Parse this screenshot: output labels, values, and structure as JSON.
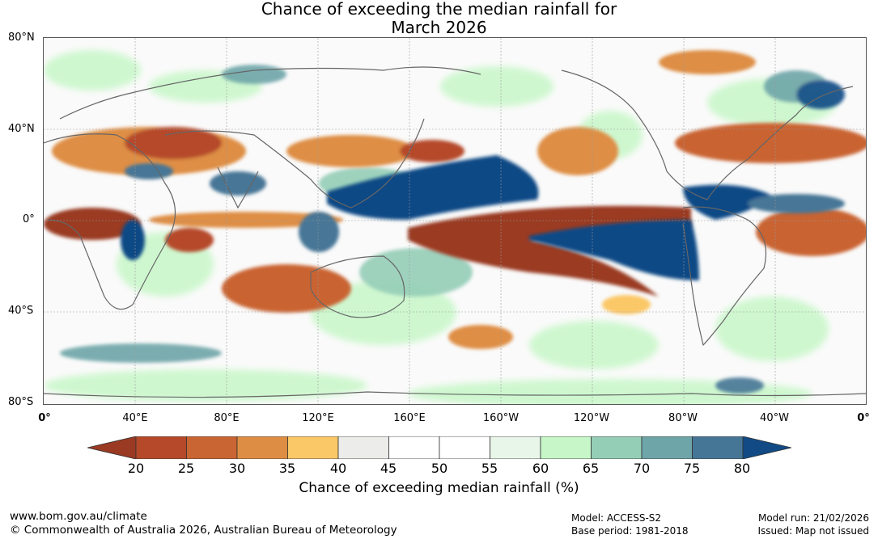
{
  "title": {
    "line1": "Chance of exceeding the median rainfall for",
    "line2": "March 2026"
  },
  "map": {
    "lat_labels": [
      "80°N",
      "40°N",
      "0°",
      "40°S",
      "80°S"
    ],
    "lon_labels": [
      "0°",
      "40°E",
      "80°E",
      "120°E",
      "160°E",
      "160°W",
      "120°W",
      "80°W",
      "40°W",
      "0°"
    ]
  },
  "colorbar": {
    "ticks": [
      "20",
      "25",
      "30",
      "35",
      "40",
      "45",
      "50",
      "55",
      "60",
      "65",
      "70",
      "75",
      "80"
    ],
    "colors": [
      "#9a3a22",
      "#b5492a",
      "#c96433",
      "#de8e44",
      "#fbc868",
      "#ececea",
      "#ffffff",
      "#ffffff",
      "#e8f6ea",
      "#c7f7c8",
      "#95ceb7",
      "#6ea5a8",
      "#467696",
      "#114a85"
    ],
    "title": "Chance of exceeding median rainfall (%)"
  },
  "footer": {
    "site": "www.bom.gov.au/climate",
    "copyright": "© Commonwealth of Australia 2026, Australian Bureau of Meteorology",
    "model": "Model: ACCESS-S2",
    "base_period": "Base period: 1981-2018",
    "model_run": "Model run: 21/02/2026",
    "issued": "Issued: Map not issued"
  }
}
